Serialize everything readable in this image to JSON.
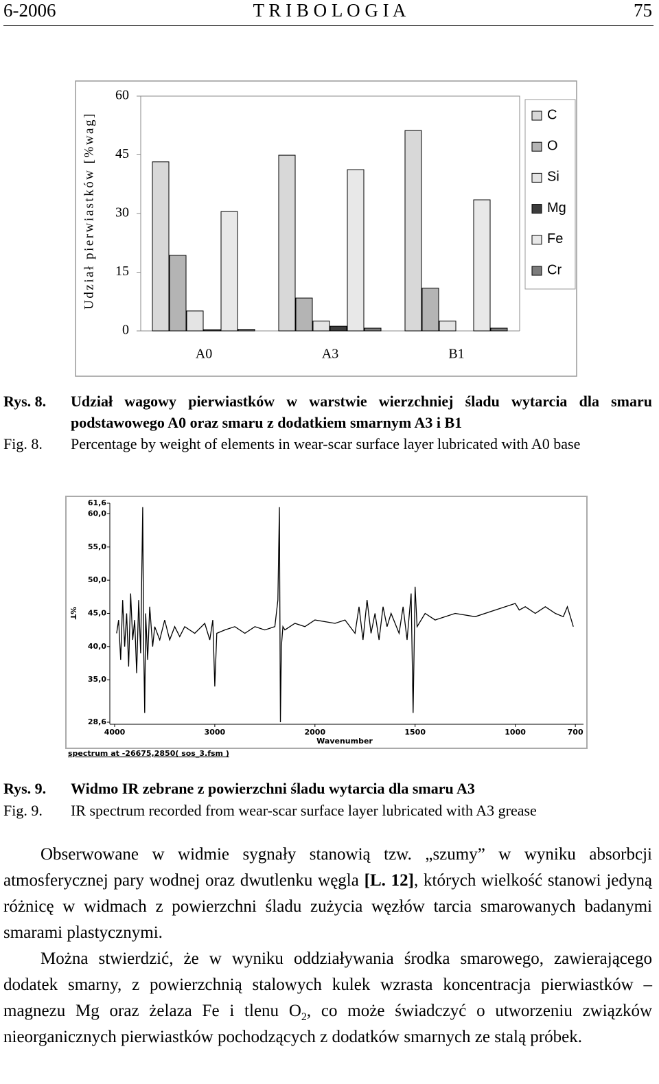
{
  "header": {
    "left": "6-2006",
    "center": "T R I B O L O G I A",
    "right": "75"
  },
  "chart_data": [
    {
      "type": "bar",
      "y_label": "Udział pierwiastków [%wag]",
      "categories": [
        "A0",
        "A3",
        "B1"
      ],
      "series": [
        {
          "name": "C",
          "color": "#d8d8d8",
          "values": [
            43.2,
            44.9,
            51.2
          ]
        },
        {
          "name": "O",
          "color": "#b4b4b4",
          "values": [
            19.3,
            8.4,
            10.9
          ]
        },
        {
          "name": "Si",
          "color": "#e4e4e4",
          "values": [
            5.1,
            2.5,
            2.5
          ]
        },
        {
          "name": "Mg",
          "color": "#3c3c3c",
          "values": [
            0.3,
            1.2,
            0
          ]
        },
        {
          "name": "Fe",
          "color": "#e8e8e8",
          "values": [
            30.5,
            41.2,
            33.5
          ]
        },
        {
          "name": "Cr",
          "color": "#7c7c7c",
          "values": [
            0.4,
            0.7,
            0.7
          ]
        }
      ],
      "ylim": [
        0,
        60
      ],
      "yticks": [
        0,
        15,
        30,
        45,
        60
      ],
      "legend": "right"
    },
    {
      "type": "line",
      "x_label": "Wavenumber",
      "y_label": "%T",
      "footer": "spectrum at -26675,2850( sos_3.fsm )",
      "color": "#000000",
      "x": [
        3980,
        3960,
        3940,
        3920,
        3900,
        3880,
        3860,
        3840,
        3820,
        3800,
        3780,
        3760,
        3740,
        3720,
        3710,
        3700,
        3690,
        3670,
        3650,
        3620,
        3600,
        3550,
        3500,
        3450,
        3400,
        3350,
        3300,
        3200,
        3100,
        3050,
        3020,
        3000,
        2980,
        2900,
        2800,
        2700,
        2600,
        2500,
        2400,
        2370,
        2355,
        2345,
        2335,
        2320,
        2300,
        2200,
        2100,
        2000,
        1900,
        1850,
        1800,
        1780,
        1760,
        1740,
        1720,
        1700,
        1680,
        1660,
        1640,
        1620,
        1580,
        1560,
        1540,
        1520,
        1510,
        1500,
        1490,
        1450,
        1400,
        1300,
        1200,
        1100,
        1000,
        980,
        950,
        900,
        850,
        800,
        760,
        740,
        720,
        710
      ],
      "values": [
        42,
        44,
        38,
        47,
        40,
        45,
        37,
        48,
        41,
        44,
        36,
        47,
        39,
        61,
        40,
        30,
        45,
        38,
        46,
        40,
        43,
        41,
        44,
        41,
        43,
        41.5,
        43,
        42,
        43.5,
        41,
        44,
        34,
        42,
        42.5,
        43,
        42,
        43,
        42.5,
        43,
        47,
        61,
        28.6,
        40,
        43,
        42.5,
        43.5,
        43,
        44,
        43.5,
        44,
        42,
        46,
        41,
        47,
        42,
        45,
        41,
        46,
        43,
        45,
        42,
        46,
        41,
        48,
        30,
        49,
        43,
        45,
        44,
        45,
        44.5,
        45.5,
        46.5,
        45.5,
        46,
        45,
        46,
        45,
        44.5,
        46,
        44,
        43
      ],
      "xlim": [
        4000,
        700
      ],
      "xticks": [
        4000,
        3000,
        2000,
        1500,
        1000,
        700
      ],
      "ylim": [
        28.6,
        61.6
      ],
      "yticks": [
        {
          "value": 28.6,
          "label": "28,6"
        },
        {
          "value": 35,
          "label": "35,0"
        },
        {
          "value": 40,
          "label": "40,0"
        },
        {
          "value": 45,
          "label": "45,0"
        },
        {
          "value": 50,
          "label": "50,0"
        },
        {
          "value": 55,
          "label": "55,0"
        },
        {
          "value": 60,
          "label": "60,0"
        },
        {
          "value": 61.6,
          "label": "61,6"
        }
      ]
    }
  ],
  "captions": [
    {
      "label_pl": "Rys. 8.",
      "text_pl": "Udział wagowy pierwiastków w warstwie wierzchniej śladu wytarcia dla smaru podstawowego A0 oraz smaru z dodatkiem smarnym A3 i B1",
      "label_en": "Fig. 8.",
      "text_en": "Percentage by weight of elements in wear-scar surface layer lubricated with A0 base"
    },
    {
      "label_pl": "Rys. 9.",
      "text_pl": "Widmo IR zebrane z powierzchni śladu wytarcia dla smaru A3",
      "label_en": "Fig. 9.",
      "text_en": "IR spectrum recorded from wear-scar surface layer lubricated with A3 grease"
    }
  ],
  "paragraphs": [
    {
      "text_before": "Obserwowane w widmie sygnały stanowią tzw. „szumy” w wyniku absorbcji atmosferycznej pary wodnej oraz dwutlenku węgla ",
      "bold": "[L. 12]",
      "text_after": ", których wielkość stanowi jedyną różnicę w widmach z powierzchni śladu zużycia węzłów tarcia smarowanych badanymi smarami plastycznymi."
    },
    {
      "text_before": "Można stwierdzić, że w wyniku oddziaływania środka smarowego, zawierającego dodatek smarny, z powierzchnią stalowych kulek wzrasta koncentracja pierwiastków – magnezu Mg oraz żelaza Fe i tlenu O",
      "subscript": "2",
      "text_after": ", co może świadczyć o utworzeniu związków nieorganicznych pierwiastków pochodzących z dodatków smarnych ze stalą próbek."
    }
  ]
}
